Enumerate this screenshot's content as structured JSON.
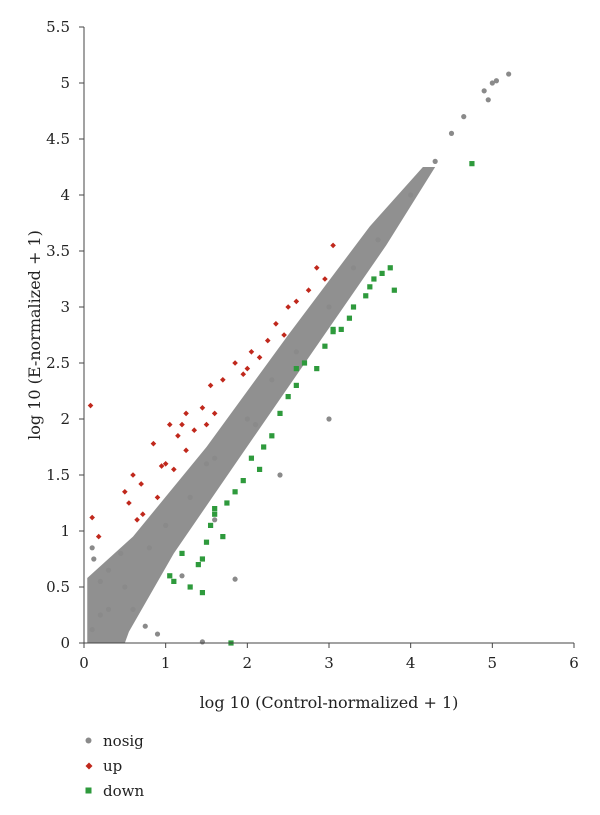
{
  "chart_data": {
    "type": "scatter",
    "title": "",
    "xlabel": "log 10 (Control-normalized + 1)",
    "ylabel": "log 10 (E-normalized + 1)",
    "xlim": [
      0,
      6
    ],
    "ylim": [
      0,
      5.5
    ],
    "x_ticks": [
      "0",
      "1",
      "2",
      "3",
      "4",
      "5",
      "6"
    ],
    "y_ticks": [
      "0",
      "0.5",
      "1",
      "1.5",
      "2",
      "2.5",
      "3",
      "3.5",
      "4",
      "4.5",
      "5",
      "5.5"
    ],
    "grid": false,
    "legend_position": "bottom-left",
    "colors": {
      "nosig": "#8a8a8a",
      "up": "#c0281c",
      "down": "#2e9a3c"
    },
    "series": [
      {
        "name": "nosig",
        "marker": "circle",
        "points": [
          [
            0.1,
            0.12
          ],
          [
            0.2,
            0.25
          ],
          [
            0.3,
            0.3
          ],
          [
            0.5,
            0.5
          ],
          [
            0.8,
            0.85
          ],
          [
            1.0,
            1.05
          ],
          [
            1.3,
            1.3
          ],
          [
            1.6,
            1.65
          ],
          [
            2.0,
            2.0
          ],
          [
            2.3,
            2.35
          ],
          [
            2.6,
            2.6
          ],
          [
            3.0,
            3.0
          ],
          [
            3.3,
            3.35
          ],
          [
            3.6,
            3.6
          ],
          [
            4.0,
            4.0
          ],
          [
            4.3,
            4.3
          ],
          [
            4.5,
            4.55
          ],
          [
            4.65,
            4.7
          ],
          [
            4.9,
            4.93
          ],
          [
            5.05,
            5.02
          ],
          [
            5.2,
            5.08
          ],
          [
            5.0,
            5.0
          ],
          [
            4.95,
            4.85
          ],
          [
            0.1,
            0.85
          ],
          [
            0.12,
            0.75
          ],
          [
            0.2,
            0.55
          ],
          [
            0.3,
            0.65
          ],
          [
            0.45,
            0.8
          ],
          [
            0.6,
            0.3
          ],
          [
            0.75,
            0.15
          ],
          [
            0.9,
            0.08
          ],
          [
            1.45,
            0.01
          ],
          [
            1.85,
            0.57
          ],
          [
            3.0,
            2.0
          ],
          [
            2.4,
            1.5
          ],
          [
            1.6,
            1.1
          ],
          [
            1.2,
            0.6
          ],
          [
            1.5,
            1.6
          ],
          [
            2.1,
            1.95
          ]
        ]
      },
      {
        "name": "up",
        "marker": "diamond",
        "points": [
          [
            0.08,
            2.12
          ],
          [
            0.1,
            1.12
          ],
          [
            0.18,
            0.95
          ],
          [
            0.5,
            1.35
          ],
          [
            0.55,
            1.25
          ],
          [
            0.6,
            1.5
          ],
          [
            0.65,
            1.1
          ],
          [
            0.7,
            1.42
          ],
          [
            0.85,
            1.78
          ],
          [
            0.95,
            1.58
          ],
          [
            1.0,
            1.6
          ],
          [
            1.05,
            1.95
          ],
          [
            1.1,
            1.55
          ],
          [
            1.15,
            1.85
          ],
          [
            1.2,
            1.95
          ],
          [
            1.25,
            2.05
          ],
          [
            1.35,
            1.9
          ],
          [
            1.45,
            2.1
          ],
          [
            1.55,
            2.3
          ],
          [
            1.6,
            2.05
          ],
          [
            1.7,
            2.35
          ],
          [
            1.85,
            2.5
          ],
          [
            1.95,
            2.4
          ],
          [
            2.05,
            2.6
          ],
          [
            2.15,
            2.55
          ],
          [
            2.25,
            2.7
          ],
          [
            2.35,
            2.85
          ],
          [
            2.45,
            2.75
          ],
          [
            2.5,
            3.0
          ],
          [
            2.6,
            3.05
          ],
          [
            2.75,
            3.15
          ],
          [
            2.85,
            3.35
          ],
          [
            2.95,
            3.25
          ],
          [
            3.05,
            3.55
          ],
          [
            0.72,
            1.15
          ],
          [
            0.9,
            1.3
          ],
          [
            1.25,
            1.72
          ],
          [
            1.5,
            1.95
          ],
          [
            2.0,
            2.45
          ]
        ]
      },
      {
        "name": "down",
        "marker": "square",
        "points": [
          [
            1.05,
            0.6
          ],
          [
            1.1,
            0.55
          ],
          [
            1.3,
            0.5
          ],
          [
            1.4,
            0.7
          ],
          [
            1.45,
            0.45
          ],
          [
            1.5,
            0.9
          ],
          [
            1.55,
            1.05
          ],
          [
            1.6,
            1.15
          ],
          [
            1.7,
            0.95
          ],
          [
            1.75,
            1.25
          ],
          [
            1.8,
            0.0
          ],
          [
            1.85,
            1.35
          ],
          [
            1.95,
            1.45
          ],
          [
            2.05,
            1.65
          ],
          [
            2.15,
            1.55
          ],
          [
            2.2,
            1.75
          ],
          [
            2.3,
            1.85
          ],
          [
            2.4,
            2.05
          ],
          [
            2.5,
            2.2
          ],
          [
            2.6,
            2.3
          ],
          [
            2.7,
            2.5
          ],
          [
            2.85,
            2.45
          ],
          [
            2.95,
            2.65
          ],
          [
            3.05,
            2.78
          ],
          [
            3.15,
            2.8
          ],
          [
            3.25,
            2.9
          ],
          [
            3.3,
            3.0
          ],
          [
            3.45,
            3.1
          ],
          [
            3.55,
            3.25
          ],
          [
            3.65,
            3.3
          ],
          [
            3.75,
            3.35
          ],
          [
            3.8,
            3.15
          ],
          [
            4.75,
            4.28
          ],
          [
            1.45,
            0.75
          ],
          [
            1.6,
            1.2
          ],
          [
            1.2,
            0.8
          ],
          [
            2.6,
            2.45
          ],
          [
            3.05,
            2.8
          ],
          [
            3.5,
            3.18
          ]
        ]
      }
    ]
  },
  "legend": [
    {
      "label": "nosig",
      "marker": "circle",
      "color": "#8a8a8a"
    },
    {
      "label": "up",
      "marker": "diamond",
      "color": "#c0281c"
    },
    {
      "label": "down",
      "marker": "square",
      "color": "#2e9a3c"
    }
  ]
}
